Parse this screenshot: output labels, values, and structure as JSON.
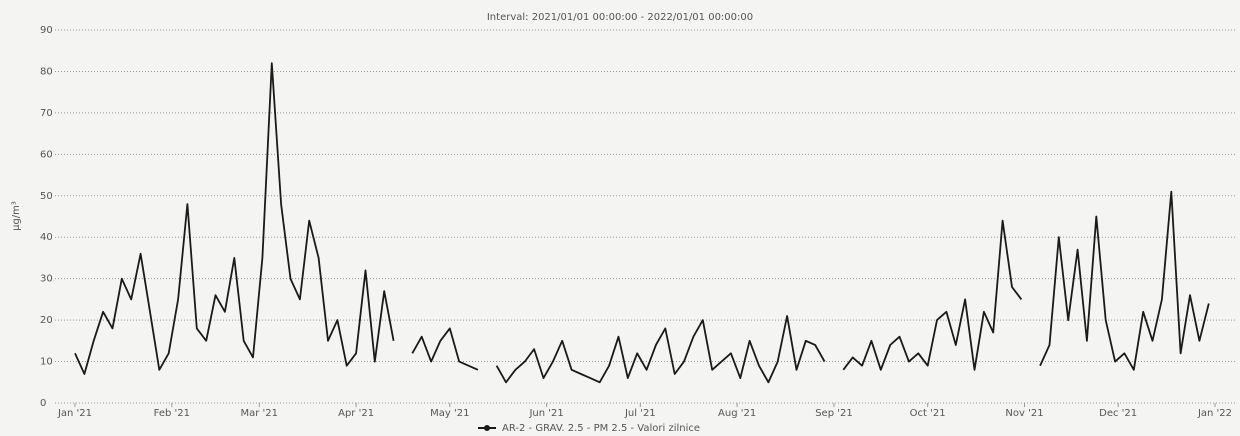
{
  "chart_data": {
    "type": "line",
    "title": "Interval: 2021/01/01 00:00:00 - 2022/01/01 00:00:00",
    "y_label": "µg/m³",
    "x": [
      0,
      3,
      6,
      9,
      12,
      15,
      18,
      21,
      24,
      27,
      30,
      33,
      36,
      39,
      42,
      45,
      48,
      51,
      54,
      57,
      60,
      63,
      66,
      69,
      72,
      75,
      78,
      81,
      84,
      87,
      90,
      93,
      96,
      99,
      102,
      105,
      108,
      111,
      114,
      117,
      120,
      123,
      126,
      129,
      132,
      135,
      138,
      141,
      144,
      147,
      150,
      153,
      156,
      159,
      162,
      165,
      168,
      171,
      174,
      177,
      180,
      183,
      186,
      189,
      192,
      195,
      198,
      201,
      204,
      207,
      210,
      213,
      216,
      219,
      222,
      225,
      228,
      231,
      234,
      237,
      240,
      243,
      246,
      249,
      252,
      255,
      258,
      261,
      264,
      267,
      270,
      273,
      276,
      279,
      282,
      285,
      288,
      291,
      294,
      297,
      300,
      303,
      306,
      309,
      312,
      315,
      318,
      321,
      324,
      327,
      330,
      333,
      336,
      339,
      342,
      345,
      348,
      351,
      354,
      357,
      360,
      363
    ],
    "series": [
      {
        "name": "AR-2 - GRAV. 2.5 - PM 2.5 - Valori zilnice",
        "color": "#1a1a1a",
        "values": [
          12,
          7,
          15,
          22,
          18,
          30,
          25,
          36,
          22,
          8,
          12,
          25,
          48,
          18,
          15,
          26,
          22,
          35,
          15,
          11,
          35,
          82,
          48,
          30,
          25,
          44,
          35,
          15,
          20,
          9,
          12,
          32,
          10,
          27,
          15,
          null,
          12,
          16,
          10,
          15,
          18,
          10,
          9,
          8,
          null,
          9,
          5,
          8,
          10,
          13,
          6,
          10,
          15,
          8,
          7,
          6,
          5,
          9,
          16,
          6,
          12,
          8,
          14,
          18,
          7,
          10,
          16,
          20,
          8,
          10,
          12,
          6,
          15,
          9,
          5,
          10,
          21,
          8,
          15,
          14,
          10,
          null,
          8,
          11,
          9,
          15,
          8,
          14,
          16,
          10,
          12,
          9,
          20,
          22,
          14,
          25,
          8,
          22,
          17,
          44,
          28,
          25,
          null,
          9,
          14,
          40,
          20,
          37,
          15,
          45,
          20,
          10,
          12,
          8,
          22,
          15,
          25,
          51,
          12,
          26,
          15,
          24
        ]
      }
    ],
    "xlim": [
      0,
      365
    ],
    "xticks": [
      {
        "value": 0,
        "label": "Jan '21"
      },
      {
        "value": 31,
        "label": "Feb '21"
      },
      {
        "value": 59,
        "label": "Mar '21"
      },
      {
        "value": 90,
        "label": "Apr '21"
      },
      {
        "value": 120,
        "label": "May '21"
      },
      {
        "value": 151,
        "label": "Jun '21"
      },
      {
        "value": 181,
        "label": "Jul '21"
      },
      {
        "value": 212,
        "label": "Aug '21"
      },
      {
        "value": 243,
        "label": "Sep '21"
      },
      {
        "value": 273,
        "label": "Oct '21"
      },
      {
        "value": 304,
        "label": "Nov '21"
      },
      {
        "value": 334,
        "label": "Dec '21"
      },
      {
        "value": 365,
        "label": "Jan '22"
      }
    ],
    "ylim": [
      0,
      90
    ],
    "yticks": [
      0,
      10,
      20,
      30,
      40,
      50,
      60,
      70,
      80,
      90
    ],
    "grid": true
  }
}
